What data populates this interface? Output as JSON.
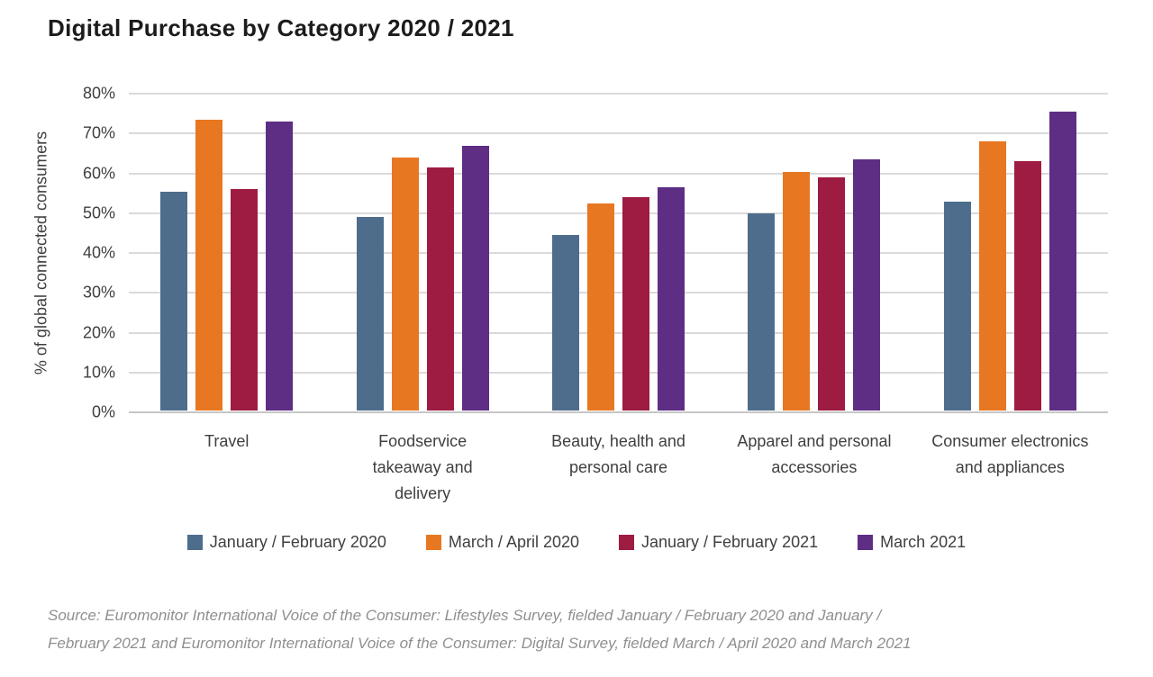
{
  "title": "Digital Purchase by Category 2020 / 2021",
  "chart_data": {
    "type": "bar",
    "title": "Digital Purchase by Category 2020 / 2021",
    "xlabel": "",
    "ylabel": "% of global connected consumers",
    "ylim": [
      0,
      80
    ],
    "ytick_step": 10,
    "ytick_labels": [
      "0%",
      "10%",
      "20%",
      "30%",
      "40%",
      "50%",
      "60%",
      "70%",
      "80%"
    ],
    "grid": true,
    "legend_position": "bottom",
    "categories": [
      "Travel",
      "Foodservice takeaway and delivery",
      "Beauty, health and personal care",
      "Apparel and personal accessories",
      "Consumer electronics and appliances"
    ],
    "category_label_lines": [
      "Travel",
      "Foodservice\ntakeaway and\ndelivery",
      "Beauty, health and\npersonal care",
      "Apparel and personal\naccessories",
      "Consumer electronics\nand appliances"
    ],
    "series": [
      {
        "name": "January / February 2020",
        "color": "#4E6D8C",
        "values": [
          55,
          48.5,
          44,
          49.5,
          52.5
        ]
      },
      {
        "name": "March / April 2020",
        "color": "#E87722",
        "values": [
          73,
          63.5,
          52,
          60,
          67.5
        ]
      },
      {
        "name": "January / February 2021",
        "color": "#9E1B42",
        "values": [
          55.5,
          61,
          53.5,
          58.5,
          62.5
        ]
      },
      {
        "name": "March 2021",
        "color": "#5E2D84",
        "values": [
          72.5,
          66.5,
          56,
          63,
          75
        ]
      }
    ],
    "source": "Source: Euromonitor International Voice of the Consumer: Lifestyles Survey, fielded January / February 2020 and January /\nFebruary 2021 and Euromonitor International Voice of the Consumer: Digital Survey, fielded March / April 2020 and March 2021"
  },
  "colors": {
    "gridline": "#dadada",
    "axis_line": "#c6c6c6",
    "title_text": "#1c1c1c",
    "axis_text": "#3f3f3f",
    "source_text": "#8f8f8f"
  }
}
